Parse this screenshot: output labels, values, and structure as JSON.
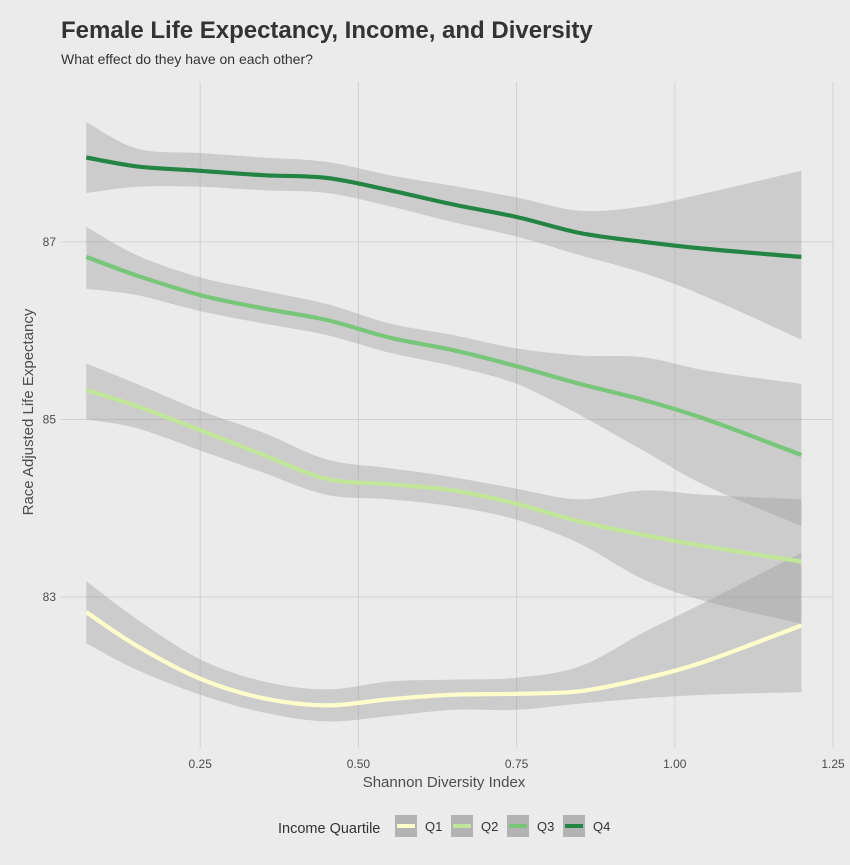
{
  "header": {
    "title": "Female Life Expectancy, Income, and Diversity",
    "subtitle": "What effect do they have on each other?"
  },
  "legend": {
    "title": "Income Quartile",
    "position": "bottom"
  },
  "chart_data": {
    "type": "line",
    "title": "Female Life Expectancy, Income, and Diversity",
    "subtitle": "What effect do they have on each other?",
    "xlabel": "Shannon Diversity Index",
    "ylabel": "Race Adjusted Life Expectancy",
    "xlim": [
      0.03,
      1.25
    ],
    "ylim": [
      81.3,
      88.8
    ],
    "x_ticks": [
      0.25,
      0.5,
      0.75,
      1.0,
      1.25
    ],
    "x_tick_labels": [
      "0.25",
      "0.50",
      "0.75",
      "1.00",
      "1.25"
    ],
    "y_ticks": [
      83,
      85,
      87
    ],
    "y_tick_labels": [
      "83",
      "85",
      "87"
    ],
    "grid": true,
    "legend_title": "Income Quartile",
    "legend_position": "bottom",
    "x": [
      0.07,
      0.15,
      0.25,
      0.35,
      0.45,
      0.55,
      0.65,
      0.75,
      0.85,
      0.95,
      1.05,
      1.2
    ],
    "series": [
      {
        "name": "Q1",
        "color": "#ffffcc",
        "values": [
          82.83,
          82.45,
          82.08,
          81.86,
          81.78,
          81.85,
          81.9,
          81.91,
          81.94,
          82.08,
          82.28,
          82.68
        ],
        "lower": [
          82.48,
          82.18,
          81.9,
          81.7,
          81.6,
          81.66,
          81.73,
          81.73,
          81.8,
          81.86,
          81.9,
          81.93
        ],
        "upper": [
          83.18,
          82.75,
          82.3,
          82.05,
          81.96,
          82.05,
          82.07,
          82.09,
          82.22,
          82.6,
          82.95,
          83.5
        ]
      },
      {
        "name": "Q2",
        "color": "#c2e699",
        "values": [
          85.33,
          85.15,
          84.88,
          84.6,
          84.33,
          84.27,
          84.2,
          84.05,
          83.85,
          83.7,
          83.57,
          83.4
        ],
        "lower": [
          85.0,
          84.9,
          84.65,
          84.4,
          84.15,
          84.1,
          84.02,
          83.87,
          83.6,
          83.2,
          82.95,
          82.7
        ],
        "upper": [
          85.63,
          85.4,
          85.1,
          84.85,
          84.55,
          84.45,
          84.35,
          84.22,
          84.1,
          84.2,
          84.15,
          84.1
        ]
      },
      {
        "name": "Q3",
        "color": "#78c679",
        "values": [
          86.83,
          86.62,
          86.4,
          86.25,
          86.12,
          85.92,
          85.78,
          85.6,
          85.4,
          85.22,
          85.0,
          84.6
        ],
        "lower": [
          86.47,
          86.4,
          86.22,
          86.08,
          85.95,
          85.75,
          85.6,
          85.4,
          85.05,
          84.65,
          84.25,
          83.8
        ],
        "upper": [
          87.17,
          86.85,
          86.6,
          86.45,
          86.3,
          86.08,
          85.95,
          85.8,
          85.72,
          85.7,
          85.55,
          85.4
        ]
      },
      {
        "name": "Q4",
        "color": "#238443",
        "values": [
          87.95,
          87.85,
          87.8,
          87.75,
          87.72,
          87.58,
          87.42,
          87.28,
          87.1,
          87.0,
          86.92,
          86.83
        ],
        "lower": [
          87.55,
          87.62,
          87.62,
          87.58,
          87.55,
          87.4,
          87.22,
          87.06,
          86.85,
          86.65,
          86.38,
          85.9
        ],
        "upper": [
          88.35,
          88.05,
          88.0,
          87.95,
          87.9,
          87.75,
          87.63,
          87.5,
          87.35,
          87.4,
          87.55,
          87.8
        ]
      }
    ]
  }
}
